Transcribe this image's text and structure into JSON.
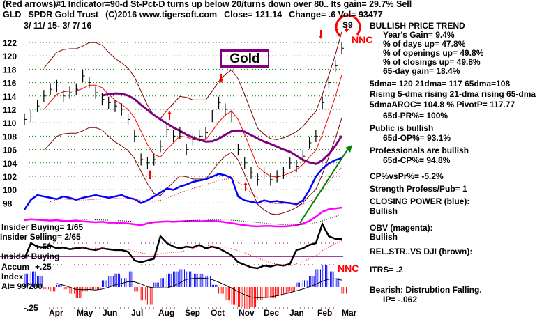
{
  "header": {
    "line1": "(Red arrows)#1 Indicator=90-d St-Pct-D turns up below 20/turns down over 80.. Its gain= 29.7% Sell",
    "ticker": "GLD",
    "name": "SPDR Gold Trust",
    "copyright": "(C)2016 www.tigersoft.com",
    "close": "Close=  121.14",
    "change": "Change= .6 Vol= 93477",
    "date_range": "3/ 11/ 15- 3/ 7/ 16"
  },
  "annotations": {
    "gold_label": "Gold",
    "signal": "S9",
    "nnc_top": "NNC",
    "nnc_bottom": "NNC"
  },
  "left_labels": {
    "insider_buying": "Insider Buying= 1/65",
    "insider_selling": "Insider Selling= 2/65",
    "plus50": "+.50",
    "insider_buying_line": "Insider Buying",
    "accum": "Accum",
    "plus25": "+.25",
    "index": "Index",
    "ai": "AI= 99/200",
    "minus25": "-.25"
  },
  "right_panel": {
    "trend_title": "BULLISH PRICE TREND",
    "years_gain": "Year's Gain= 9.4%",
    "days_up": "% of days up= 47.8%",
    "openings_up": "% of openings up= 49.8%",
    "closings_up": "% of closings up= 49.8%",
    "gain65": "65-day gain= 18.4%",
    "dmas": "5dma= 120 21dma= 117 65dma=108",
    "rising": "Rising 5-dma rising 21-dma rising 65-dma",
    "aroc": "5dmaAROC= 104.8 %  PivotP= 117.77",
    "pr65": "65d-PR%= 100%",
    "public": "Public is bullish",
    "op65": "65d-OP%= 93.1%",
    "professionals": "Professionals are bullish",
    "cp65": "65d-CP%= 94.8%",
    "cpvspr": "CP%vsPr%= -5.2%",
    "strength": "Strength Profess/Pub= 1",
    "closing_power": "CLOSING POWER (blue):",
    "closing_power_state": "Bullish",
    "obv": "OBV (magenta):",
    "obv_state": "Bullish",
    "relstr": "REL.STR..VS DJI (brown):",
    "itrs": "ITRS= .2",
    "bearish": "Bearish: Distrubtion Falling.",
    "ip": "IP= -.062"
  },
  "colors": {
    "grid": "#008000",
    "price": "#000000",
    "ma21": "#ff0000",
    "ma65": "#800080",
    "band": "#800000",
    "cp": "#0000ff",
    "obv": "#ff00ff",
    "trend": "#008000",
    "ai_pos": "#0000ff",
    "ai_neg": "#ff0000"
  },
  "chart_data": {
    "type": "line",
    "title": "GLD SPDR Gold Trust",
    "ylim": [
      97,
      123
    ],
    "yticks": [
      98,
      100,
      102,
      104,
      106,
      108,
      110,
      112,
      114,
      116,
      118,
      120,
      122
    ],
    "months": [
      "Apr",
      "May",
      "Jun",
      "Jul",
      "Aug",
      "Sep",
      "Oct",
      "Nov",
      "Dec",
      "Jan",
      "Feb",
      "Mar"
    ],
    "grid": true,
    "price_weekly": [
      110.5,
      111,
      112.5,
      114,
      115,
      115.5,
      114,
      114.5,
      115,
      117,
      116,
      114.5,
      113.5,
      113,
      112.5,
      112,
      110.5,
      108,
      104.5,
      104,
      104.5,
      106.5,
      109,
      108,
      108.5,
      106,
      107.5,
      108,
      108.5,
      111,
      113,
      112,
      111,
      106,
      104,
      102.5,
      101.5,
      102.5,
      101.5,
      102,
      102.5,
      104,
      103.5,
      105,
      107,
      108,
      113,
      116,
      118.5,
      121.14
    ],
    "closing_power": [
      20,
      35,
      42,
      40,
      38,
      36,
      40,
      38,
      35,
      38,
      40,
      42,
      40,
      38,
      40,
      42,
      38,
      36,
      30,
      34,
      40,
      46,
      52,
      50,
      55,
      58,
      62,
      64,
      66,
      70,
      74,
      72,
      68,
      40,
      34,
      32,
      30,
      34,
      32,
      33,
      31,
      30,
      28,
      34,
      50,
      70,
      82,
      90,
      95,
      98
    ],
    "obv": [
      40,
      42,
      41,
      40,
      39,
      40,
      38,
      38,
      39,
      37,
      36,
      35,
      36,
      34,
      34,
      33,
      32,
      30,
      28,
      32,
      35,
      36,
      37,
      36,
      37,
      38,
      38,
      37,
      38,
      38,
      37,
      35,
      33,
      30,
      28,
      26,
      25,
      26,
      26,
      25,
      25,
      26,
      28,
      32,
      38,
      48,
      60,
      66,
      68,
      70
    ],
    "accum_line": [
      0.32,
      0.5,
      0.46,
      0.45,
      0.47,
      0.44,
      0.45,
      0.43,
      0.44,
      0.45,
      0.43,
      0.42,
      0.44,
      0.43,
      0.42,
      0.42,
      0.4,
      0.3,
      0.28,
      0.3,
      0.32,
      0.58,
      0.5,
      0.46,
      0.44,
      0.46,
      0.45,
      0.48,
      0.44,
      0.46,
      0.44,
      0.4,
      0.36,
      0.28,
      0.25,
      0.22,
      0.21,
      0.24,
      0.23,
      0.25,
      0.24,
      0.26,
      0.42,
      0.44,
      0.48,
      0.5,
      0.72,
      0.58,
      0.55,
      0.55
    ],
    "ai_index": [
      0.6,
      0.7,
      0.5,
      -0.1,
      -0.2,
      0.1,
      -0.1,
      -0.3,
      -0.5,
      -0.2,
      -0.1,
      -0.1,
      0.3,
      0.5,
      0.6,
      0.4,
      0.7,
      -0.2,
      -0.6,
      -0.8,
      0.2,
      0.4,
      0.6,
      0.7,
      0.8,
      0.7,
      0.6,
      0.6,
      0.5,
      0.1,
      -0.3,
      -0.6,
      -0.8,
      -0.9,
      -1,
      -0.9,
      -0.6,
      -0.5,
      -0.5,
      -0.4,
      -0.3,
      -0.2,
      0.2,
      0.3,
      0.5,
      0.8,
      1,
      0.7,
      0.4,
      -0.3
    ]
  }
}
